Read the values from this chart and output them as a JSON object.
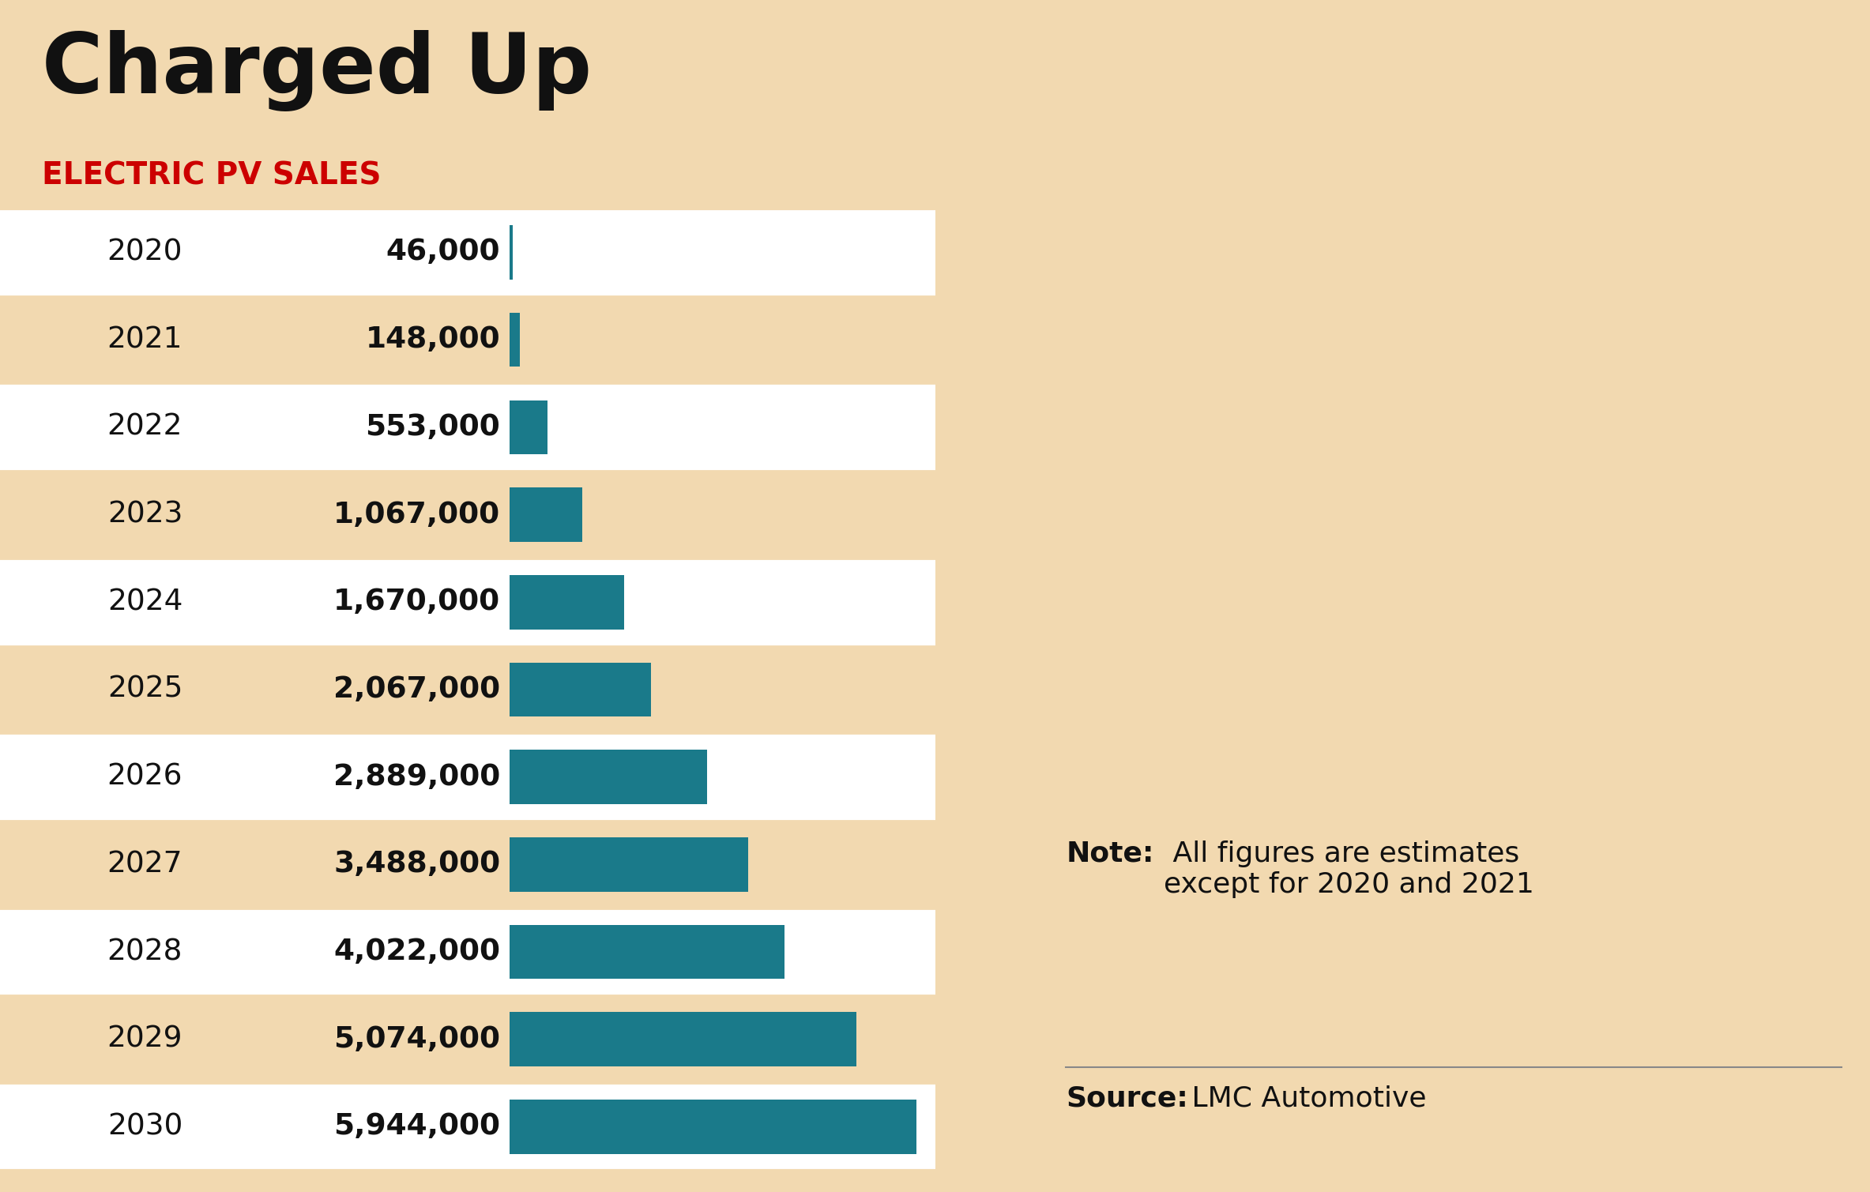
{
  "title": "Charged Up",
  "subtitle": "ELECTRIC PV SALES",
  "years": [
    "2020",
    "2021",
    "2022",
    "2023",
    "2024",
    "2025",
    "2026",
    "2027",
    "2028",
    "2029",
    "2030"
  ],
  "values": [
    46000,
    148000,
    553000,
    1067000,
    1670000,
    2067000,
    2889000,
    3488000,
    4022000,
    5074000,
    5944000
  ],
  "labels": [
    "46,000",
    "148,000",
    "553,000",
    "1,067,000",
    "1,670,000",
    "2,067,000",
    "2,889,000",
    "3,488,000",
    "4,022,000",
    "5,074,000",
    "5,944,000"
  ],
  "bar_color": "#1a7a8a",
  "background_color": "#f2d9b0",
  "row_bg_white": "#ffffff",
  "row_bg_tan": "#f2d9b0",
  "title_color": "#111111",
  "subtitle_color": "#cc0000",
  "note_bold": "Note:",
  "note_text": " All figures are estimates\nexcept for 2020 and 2021",
  "source_bold": "Source:",
  "source_text": " LMC Automotive",
  "max_value": 5944000
}
